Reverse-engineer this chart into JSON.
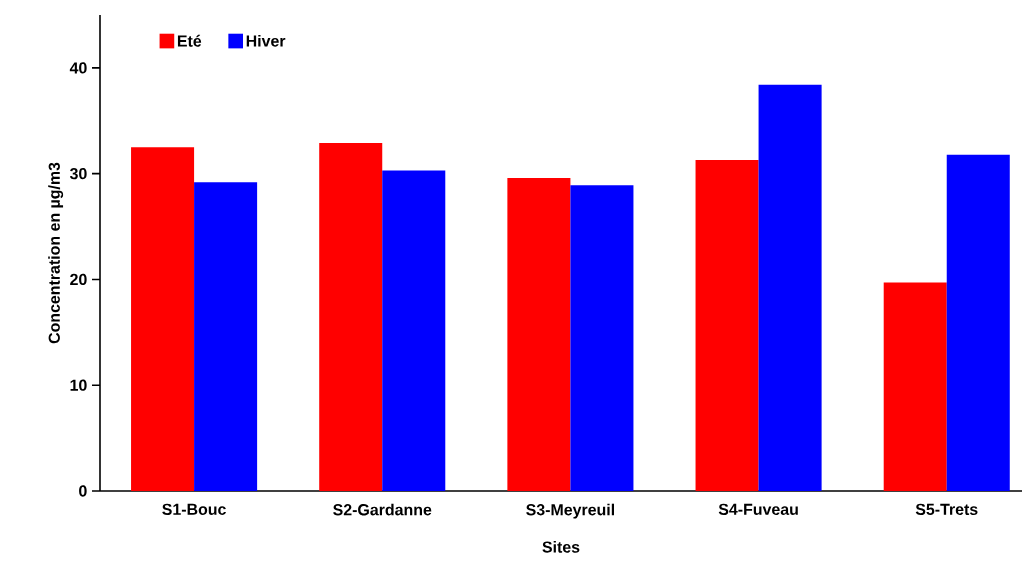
{
  "chart_data": {
    "type": "bar",
    "xlabel": "Sites",
    "ylabel": "Concentration en µg/m3",
    "categories": [
      "S1-Bouc",
      "S2-Gardanne",
      "S3-Meyreuil",
      "S4-Fuveau",
      "S5-Trets"
    ],
    "series": [
      {
        "name": "Eté",
        "color": "#ff0000",
        "values": [
          32.5,
          32.9,
          29.6,
          31.3,
          19.7
        ]
      },
      {
        "name": "Hiver",
        "color": "#0000ff",
        "values": [
          29.2,
          30.3,
          28.9,
          38.4,
          31.8
        ]
      }
    ],
    "ylim": [
      0,
      45
    ],
    "yticks": [
      0,
      10,
      20,
      30,
      40
    ],
    "grid": false,
    "legend": "top left"
  }
}
